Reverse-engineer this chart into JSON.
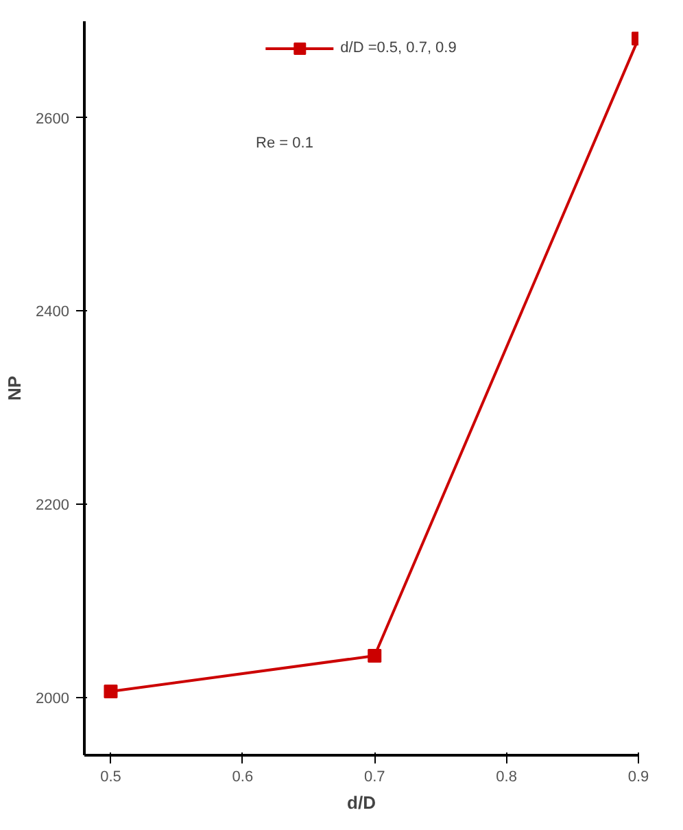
{
  "chart_data": {
    "type": "line",
    "ylabel": "NP",
    "xlabel": "d/D",
    "x": [
      0.5,
      0.7,
      0.9
    ],
    "series": [
      {
        "name": "d/D =0.5, 0.7, 0.9",
        "color": "#cc0000",
        "values": [
          2006,
          2043,
          2682
        ]
      }
    ],
    "annotations": [
      "Re = 0.1"
    ],
    "xlim": [
      0.48,
      0.9
    ],
    "ylim": [
      1940,
      2700
    ],
    "xticks": [
      0.5,
      0.6,
      0.7,
      0.8,
      0.9
    ],
    "yticks": [
      2000,
      2200,
      2400,
      2600
    ],
    "marker": "square",
    "line_style": "solid",
    "grid": false,
    "legend": "top"
  }
}
